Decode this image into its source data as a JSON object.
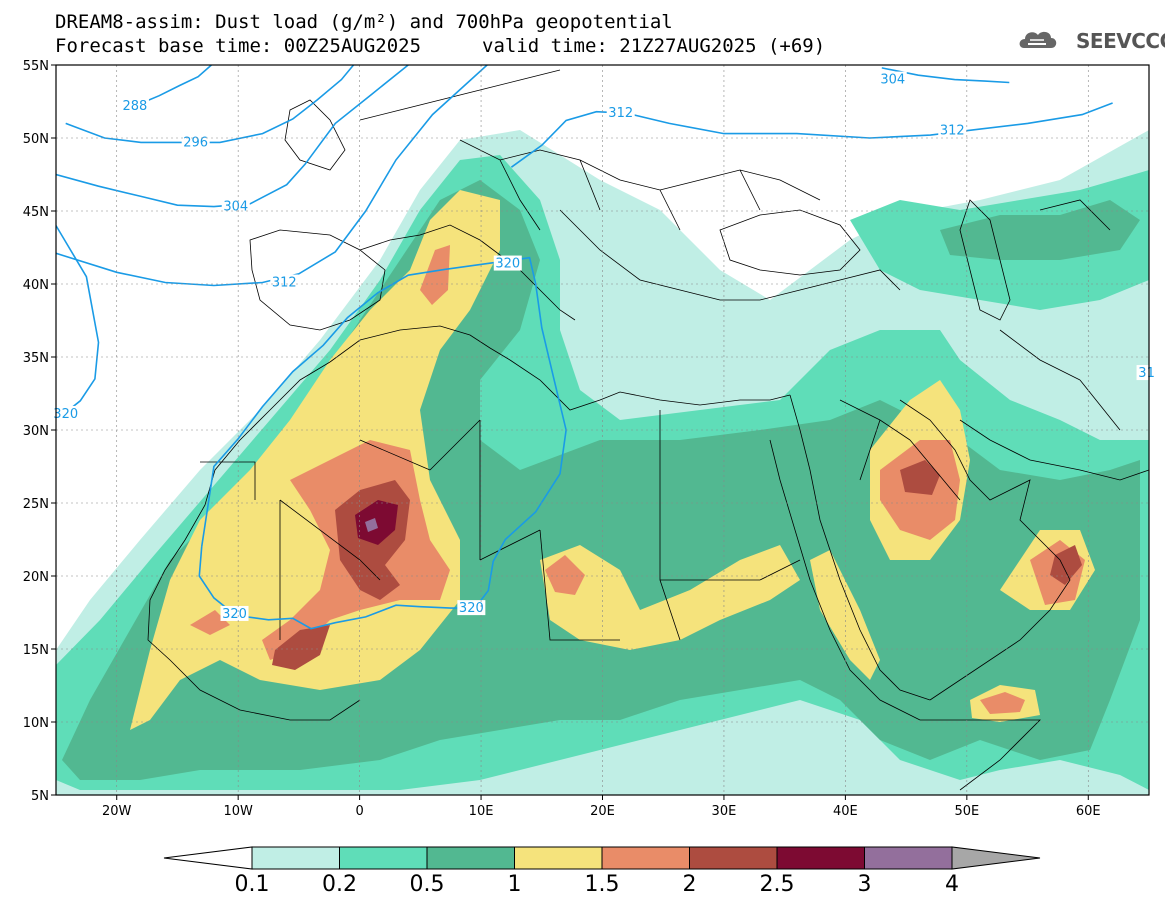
{
  "header": {
    "title": "DREAM8-assim: Dust load (g/m²) and 700hPa geopotential",
    "base_time": "Forecast base time: 00Z25AUG2025",
    "valid_time": "valid time: 21Z27AUG2025 (+69)",
    "logo_text": "SEEVCCC",
    "logo_icon": "cloud-logo-icon"
  },
  "map": {
    "lon_range": [
      -25,
      65
    ],
    "lat_range": [
      5,
      55
    ],
    "lat_ticks": [
      "5N",
      "10N",
      "15N",
      "20N",
      "25N",
      "30N",
      "35N",
      "40N",
      "45N",
      "50N",
      "55N"
    ],
    "lon_ticks": [
      "20W",
      "10W",
      "0",
      "10E",
      "20E",
      "30E",
      "40E",
      "50E",
      "60E"
    ],
    "contour_color": "#1a9be6",
    "contour_labels": [
      {
        "text": "288",
        "lon": -18.5,
        "lat": 52.2
      },
      {
        "text": "296",
        "lon": -13.5,
        "lat": 49.7
      },
      {
        "text": "304",
        "lon": -10.2,
        "lat": 45.3
      },
      {
        "text": "312",
        "lon": -6.2,
        "lat": 40.1
      },
      {
        "text": "320",
        "lon": -24.2,
        "lat": 31.1
      },
      {
        "text": "312",
        "lon": 21.5,
        "lat": 51.7
      },
      {
        "text": "304",
        "lon": 43.9,
        "lat": 54.0
      },
      {
        "text": "312",
        "lon": 48.8,
        "lat": 50.5
      },
      {
        "text": "320",
        "lon": 12.2,
        "lat": 41.4
      },
      {
        "text": "320",
        "lon": -10.3,
        "lat": 17.4
      },
      {
        "text": "320",
        "lon": 9.2,
        "lat": 17.8
      },
      {
        "text": "31",
        "lon": 64.8,
        "lat": 33.9
      }
    ],
    "isolines": [
      {
        "name": "288",
        "points": [
          [
            -18.5,
            52.2
          ],
          [
            -16.5,
            52.9
          ],
          [
            -14.8,
            53.6
          ],
          [
            -13.3,
            54.2
          ],
          [
            -12.2,
            55
          ]
        ]
      },
      {
        "name": "296",
        "points": [
          [
            -24.2,
            51.0
          ],
          [
            -21,
            50.0
          ],
          [
            -18,
            49.7
          ],
          [
            -15,
            49.7
          ],
          [
            -11.5,
            49.7
          ],
          [
            -8,
            50.3
          ],
          [
            -5.5,
            51.3
          ],
          [
            -3.5,
            52.6
          ],
          [
            -1.5,
            54.0
          ],
          [
            -0.5,
            55
          ]
        ]
      },
      {
        "name": "304",
        "points": [
          [
            -25,
            47.5
          ],
          [
            -21.5,
            46.7
          ],
          [
            -18,
            46.0
          ],
          [
            -15,
            45.4
          ],
          [
            -12,
            45.3
          ],
          [
            -9,
            45.5
          ],
          [
            -6,
            46.8
          ],
          [
            -4.5,
            48.2
          ],
          [
            -2,
            51.0
          ],
          [
            1,
            53.0
          ],
          [
            4,
            55
          ]
        ]
      },
      {
        "name": "312a",
        "points": [
          [
            -25,
            42.1
          ],
          [
            -20,
            40.8
          ],
          [
            -16,
            40.1
          ],
          [
            -12,
            39.9
          ],
          [
            -8,
            40.1
          ],
          [
            -5,
            40.7
          ],
          [
            -2,
            42.2
          ],
          [
            0.5,
            45.0
          ],
          [
            3,
            48.5
          ],
          [
            6,
            51.6
          ],
          [
            10.5,
            55
          ]
        ]
      },
      {
        "name": "312b",
        "points": [
          [
            12.5,
            48.0
          ],
          [
            15,
            49.5
          ],
          [
            17,
            51.2
          ],
          [
            19.5,
            51.8
          ],
          [
            22,
            51.7
          ],
          [
            25.5,
            51.0
          ],
          [
            30,
            50.3
          ],
          [
            36,
            50.3
          ],
          [
            42,
            50.0
          ],
          [
            47,
            50.2
          ],
          [
            51,
            50.6
          ],
          [
            55,
            51.0
          ],
          [
            59.5,
            51.6
          ],
          [
            62,
            52.4
          ]
        ]
      },
      {
        "name": "304b",
        "points": [
          [
            43,
            54.8
          ],
          [
            46,
            54.3
          ],
          [
            49,
            54.0
          ],
          [
            51.5,
            53.9
          ],
          [
            53.5,
            53.8
          ]
        ]
      },
      {
        "name": "320a",
        "points": [
          [
            -25,
            44.0
          ],
          [
            -22.5,
            40.5
          ],
          [
            -21.5,
            36.0
          ],
          [
            -21.8,
            33.5
          ],
          [
            -23,
            32.0
          ],
          [
            -24.5,
            31.0
          ]
        ]
      },
      {
        "name": "320b",
        "points": [
          [
            -13,
            22.0
          ],
          [
            -12.0,
            27.5
          ],
          [
            -10,
            29.4
          ],
          [
            -8,
            31.6
          ],
          [
            -5.5,
            34.0
          ],
          [
            -3,
            35.8
          ],
          [
            -1,
            37.7
          ],
          [
            1.5,
            39.4
          ],
          [
            4,
            40.6
          ],
          [
            7.0,
            41.0
          ],
          [
            10.5,
            41.4
          ],
          [
            14,
            41.8
          ],
          [
            14.5,
            40.0
          ],
          [
            15,
            37.0
          ],
          [
            16,
            33.5
          ],
          [
            17.0,
            30.0
          ],
          [
            16.5,
            27.0
          ],
          [
            14.5,
            24.4
          ],
          [
            12,
            22.5
          ],
          [
            11.0,
            21.0
          ],
          [
            10.6,
            19.0
          ],
          [
            9.5,
            17.8
          ],
          [
            7.5,
            17.8
          ],
          [
            5,
            17.9
          ],
          [
            3,
            18.0
          ],
          [
            0.5,
            17.2
          ],
          [
            -2,
            16.8
          ],
          [
            -4,
            16.4
          ],
          [
            -5.5,
            17.1
          ],
          [
            -7.5,
            17.0
          ],
          [
            -10.2,
            17.3
          ],
          [
            -12.0,
            18.5
          ],
          [
            -13.2,
            20.0
          ],
          [
            -13,
            22.0
          ]
        ]
      }
    ]
  },
  "colorbar": {
    "labels": [
      "0.1",
      "0.2",
      "0.5",
      "1",
      "1.5",
      "2",
      "2.5",
      "3",
      "4"
    ],
    "colors": [
      "#c0eee5",
      "#5fddb8",
      "#52b891",
      "#f5e37c",
      "#e98c68",
      "#ad4c40",
      "#7d0a32",
      "#936f9c"
    ],
    "under_color": "#ffffff",
    "over_color": "#a7a7a7"
  }
}
